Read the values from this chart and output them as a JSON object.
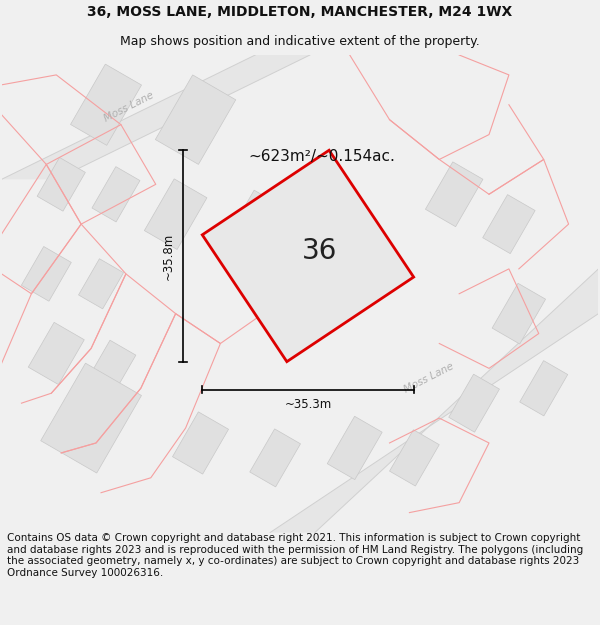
{
  "title_line1": "36, MOSS LANE, MIDDLETON, MANCHESTER, M24 1WX",
  "title_line2": "Map shows position and indicative extent of the property.",
  "area_text": "~623m²/~0.154ac.",
  "label_36": "36",
  "dim_height": "~35.8m",
  "dim_width": "~35.3m",
  "road_label1": "Moss Lane",
  "road_label2": "Moss Lane",
  "footer_text": "Contains OS data © Crown copyright and database right 2021. This information is subject to Crown copyright and database rights 2023 and is reproduced with the permission of HM Land Registry. The polygons (including the associated geometry, namely x, y co-ordinates) are subject to Crown copyright and database rights 2023 Ordnance Survey 100026316.",
  "bg_color": "#f0f0f0",
  "map_bg": "#ffffff",
  "plot_fill": "#e8e8e8",
  "plot_edge": "#dd0000",
  "building_fill": "#e0e0e0",
  "building_edge": "#c8c8c8",
  "pink_line_color": "#f5a0a0",
  "road_fill": "#e6e6e6",
  "road_edge": "#d0d0d0",
  "title_fontsize": 10,
  "subtitle_fontsize": 9,
  "footer_fontsize": 7.5
}
